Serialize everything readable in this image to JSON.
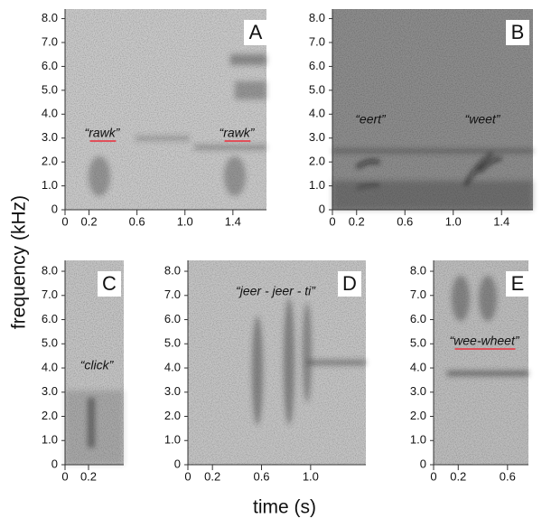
{
  "figure": {
    "y_axis_label": "frequency (kHz)",
    "x_axis_label": "time (s)"
  },
  "panels": [
    {
      "letter": "A",
      "annotations": [
        "“rawk”",
        "“rawk”"
      ],
      "xlim": [
        0,
        1.68
      ],
      "ylim": [
        0,
        8.4
      ],
      "xticks": [
        0,
        0.2,
        0.6,
        {
          "value": 1.0,
          "label": "1.0"
        },
        1.4
      ],
      "yticks": [
        0,
        {
          "value": 1.0,
          "label": "1.0"
        },
        {
          "value": 2.0,
          "label": "2.0"
        },
        {
          "value": 3.0,
          "label": "3.0"
        },
        {
          "value": 4.0,
          "label": "4.0"
        },
        {
          "value": 5.0,
          "label": "5.0"
        },
        {
          "value": 6.0,
          "label": "6.0"
        },
        {
          "value": 7.0,
          "label": "7.0"
        },
        {
          "value": 8.0,
          "label": "8.0"
        }
      ]
    },
    {
      "letter": "B",
      "annotations": [
        "“eert”",
        "“weet”"
      ],
      "xlim": [
        0,
        1.66
      ],
      "ylim": [
        0,
        8.4
      ],
      "xticks": [
        0,
        0.2,
        0.6,
        {
          "value": 1.0,
          "label": "1.0"
        },
        1.4
      ],
      "yticks": [
        0,
        {
          "value": 1.0,
          "label": "1.0"
        },
        {
          "value": 2.0,
          "label": "2.0"
        },
        {
          "value": 3.0,
          "label": "3.0"
        },
        {
          "value": 4.0,
          "label": "4.0"
        },
        {
          "value": 5.0,
          "label": "5.0"
        },
        {
          "value": 6.0,
          "label": "6.0"
        },
        {
          "value": 7.0,
          "label": "7.0"
        },
        {
          "value": 8.0,
          "label": "8.0"
        }
      ]
    },
    {
      "letter": "C",
      "annotations": [
        "“click”"
      ],
      "xlim": [
        0,
        0.5
      ],
      "ylim": [
        0,
        8.45
      ],
      "xticks": [
        0,
        0.2
      ],
      "yticks": [
        0,
        {
          "value": 1.0,
          "label": "1.0"
        },
        {
          "value": 2.0,
          "label": "2.0"
        },
        {
          "value": 3.0,
          "label": "3.0"
        },
        {
          "value": 4.0,
          "label": "4.0"
        },
        {
          "value": 5.0,
          "label": "5.0"
        },
        {
          "value": 6.0,
          "label": "6.0"
        },
        {
          "value": 7.0,
          "label": "7.0"
        },
        {
          "value": 8.0,
          "label": "8.0"
        }
      ]
    },
    {
      "letter": "D",
      "annotations": [
        "“jeer - jeer - ti”"
      ],
      "xlim": [
        0,
        1.45
      ],
      "ylim": [
        0,
        8.45
      ],
      "xticks": [
        0,
        0.2,
        0.6,
        {
          "value": 1.0,
          "label": "1.0"
        }
      ],
      "yticks": [
        0,
        {
          "value": 1.0,
          "label": "1.0"
        },
        {
          "value": 2.0,
          "label": "2.0"
        },
        {
          "value": 3.0,
          "label": "3.0"
        },
        {
          "value": 4.0,
          "label": "4.0"
        },
        {
          "value": 5.0,
          "label": "5.0"
        },
        {
          "value": 6.0,
          "label": "6.0"
        },
        {
          "value": 7.0,
          "label": "7.0"
        },
        {
          "value": 8.0,
          "label": "8.0"
        }
      ]
    },
    {
      "letter": "E",
      "annotations": [
        "“wee-wheet”"
      ],
      "xlim": [
        0,
        0.77
      ],
      "ylim": [
        0,
        8.45
      ],
      "xticks": [
        0,
        0.2,
        0.6
      ],
      "yticks": [
        0,
        {
          "value": 1.0,
          "label": "1.0"
        },
        {
          "value": 2.0,
          "label": "2.0"
        },
        {
          "value": 3.0,
          "label": "3.0"
        },
        {
          "value": 4.0,
          "label": "4.0"
        },
        {
          "value": 5.0,
          "label": "5.0"
        },
        {
          "value": 6.0,
          "label": "6.0"
        },
        {
          "value": 7.0,
          "label": "7.0"
        },
        {
          "value": 8.0,
          "label": "8.0"
        }
      ]
    }
  ]
}
